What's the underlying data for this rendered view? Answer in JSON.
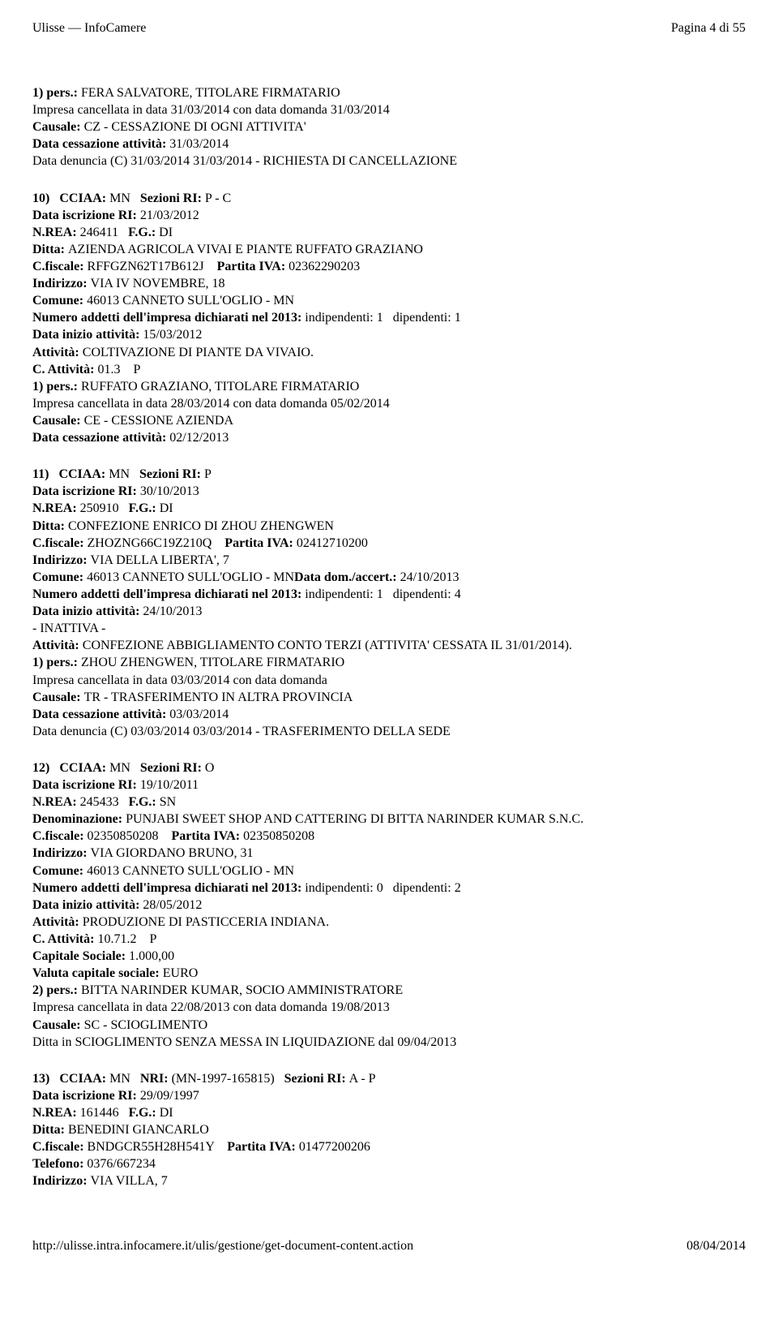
{
  "header": {
    "left": "Ulisse — InfoCamere",
    "right": "Pagina 4 di 55"
  },
  "entry9_tail": {
    "l1_a": "1) pers.: ",
    "l1_b": "FERA SALVATORE, TITOLARE FIRMATARIO",
    "l2": "Impresa cancellata in data 31/03/2014 con data domanda 31/03/2014",
    "l3_a": "Causale: ",
    "l3_b": "CZ - CESSAZIONE DI OGNI ATTIVITA'",
    "l4_a": "Data cessazione attività: ",
    "l4_b": "31/03/2014",
    "l5": "Data denuncia (C) 31/03/2014 31/03/2014 - RICHIESTA DI CANCELLAZIONE"
  },
  "entry10": {
    "h1_a": "10)   CCIAA: ",
    "h1_b": "MN   ",
    "h1_c": "Sezioni RI: ",
    "h1_d": "P - C",
    "h2_a": "Data iscrizione RI: ",
    "h2_b": "21/03/2012",
    "h3_a": "N.REA: ",
    "h3_b": "246411   ",
    "h3_c": "F.G.: ",
    "h3_d": "DI",
    "h4_a": "Ditta: ",
    "h4_b": "AZIENDA AGRICOLA VIVAI E PIANTE RUFFATO GRAZIANO",
    "h5_a": "C.fiscale: ",
    "h5_b": "RFFGZN62T17B612J    ",
    "h5_c": "Partita IVA: ",
    "h5_d": "02362290203",
    "h6_a": "Indirizzo: ",
    "h6_b": "VIA IV NOVEMBRE, 18",
    "h7_a": "Comune: ",
    "h7_b": "46013 CANNETO SULL'OGLIO - MN",
    "h8_a": "Numero addetti dell'impresa dichiarati nel 2013: ",
    "h8_b": "indipendenti: 1   dipendenti: 1",
    "h9_a": "Data inizio attività: ",
    "h9_b": "15/03/2012",
    "h10_a": "Attività: ",
    "h10_b": "COLTIVAZIONE DI PIANTE DA VIVAIO.",
    "h11_a": "C. Attività: ",
    "h11_b": "01.3    P",
    "h12_a": "1) pers.: ",
    "h12_b": "RUFFATO GRAZIANO, TITOLARE FIRMATARIO",
    "h13": "Impresa cancellata in data 28/03/2014 con data domanda 05/02/2014",
    "h14_a": "Causale: ",
    "h14_b": "CE - CESSIONE AZIENDA",
    "h15_a": "Data cessazione attività: ",
    "h15_b": "02/12/2013"
  },
  "entry11": {
    "h1_a": "11)   CCIAA: ",
    "h1_b": "MN   ",
    "h1_c": "Sezioni RI: ",
    "h1_d": "P",
    "h2_a": "Data iscrizione RI: ",
    "h2_b": "30/10/2013",
    "h3_a": "N.REA: ",
    "h3_b": "250910   ",
    "h3_c": "F.G.: ",
    "h3_d": "DI",
    "h4_a": "Ditta: ",
    "h4_b": "CONFEZIONE ENRICO DI ZHOU ZHENGWEN",
    "h5_a": "C.fiscale: ",
    "h5_b": "ZHOZNG66C19Z210Q    ",
    "h5_c": "Partita IVA: ",
    "h5_d": "02412710200",
    "h6_a": "Indirizzo: ",
    "h6_b": "VIA DELLA LIBERTA', 7",
    "h7_a": "Comune: ",
    "h7_b": "46013 CANNETO SULL'OGLIO - MN",
    "h7_c": "Data dom./accert.: ",
    "h7_d": "24/10/2013",
    "h8_a": "Numero addetti dell'impresa dichiarati nel 2013: ",
    "h8_b": "indipendenti: 1   dipendenti: 4",
    "h9_a": "Data inizio attività: ",
    "h9_b": "24/10/2013",
    "h10": "- INATTIVA -",
    "h11_a": "Attività: ",
    "h11_b": "CONFEZIONE ABBIGLIAMENTO CONTO TERZI (ATTIVITA' CESSATA IL 31/01/2014).",
    "h12_a": "1) pers.: ",
    "h12_b": "ZHOU ZHENGWEN, TITOLARE FIRMATARIO",
    "h13": "Impresa cancellata in data 03/03/2014 con data domanda",
    "h14_a": "Causale: ",
    "h14_b": "TR - TRASFERIMENTO IN ALTRA PROVINCIA",
    "h15_a": "Data cessazione attività: ",
    "h15_b": "03/03/2014",
    "h16": "Data denuncia (C) 03/03/2014 03/03/2014 - TRASFERIMENTO DELLA SEDE"
  },
  "entry12": {
    "h1_a": "12)   CCIAA: ",
    "h1_b": "MN   ",
    "h1_c": "Sezioni RI: ",
    "h1_d": "O",
    "h2_a": "Data iscrizione RI: ",
    "h2_b": "19/10/2011",
    "h3_a": "N.REA: ",
    "h3_b": "245433   ",
    "h3_c": "F.G.: ",
    "h3_d": "SN",
    "h4_a": "Denominazione: ",
    "h4_b": "PUNJABI SWEET SHOP AND CATTERING DI BITTA NARINDER KUMAR S.N.C.",
    "h5_a": "C.fiscale: ",
    "h5_b": "02350850208    ",
    "h5_c": "Partita IVA: ",
    "h5_d": "02350850208",
    "h6_a": "Indirizzo: ",
    "h6_b": "VIA GIORDANO BRUNO, 31",
    "h7_a": "Comune: ",
    "h7_b": "46013 CANNETO SULL'OGLIO - MN",
    "h8_a": "Numero addetti dell'impresa dichiarati nel 2013: ",
    "h8_b": "indipendenti: 0   dipendenti: 2",
    "h9_a": "Data inizio attività: ",
    "h9_b": "28/05/2012",
    "h10_a": "Attività: ",
    "h10_b": "PRODUZIONE DI PASTICCERIA INDIANA.",
    "h11_a": "C. Attività: ",
    "h11_b": "10.71.2    P",
    "h12_a": "Capitale Sociale: ",
    "h12_b": "1.000,00",
    "h13_a": "Valuta capitale sociale: ",
    "h13_b": "EURO",
    "h14_a": "2) pers.: ",
    "h14_b": "BITTA NARINDER KUMAR, SOCIO AMMINISTRATORE",
    "h15": "Impresa cancellata in data 22/08/2013 con data domanda 19/08/2013",
    "h16_a": "Causale: ",
    "h16_b": "SC - SCIOGLIMENTO",
    "h17": "Ditta in SCIOGLIMENTO SENZA MESSA IN LIQUIDAZIONE dal 09/04/2013"
  },
  "entry13": {
    "h1_a": "13)   CCIAA: ",
    "h1_b": "MN   ",
    "h1_c": "NRI: ",
    "h1_d": "(MN-1997-165815)   ",
    "h1_e": "Sezioni RI: ",
    "h1_f": "A - P",
    "h2_a": "Data iscrizione RI: ",
    "h2_b": "29/09/1997",
    "h3_a": "N.REA: ",
    "h3_b": "161446   ",
    "h3_c": "F.G.: ",
    "h3_d": "DI",
    "h4_a": "Ditta: ",
    "h4_b": "BENEDINI GIANCARLO",
    "h5_a": "C.fiscale: ",
    "h5_b": "BNDGCR55H28H541Y    ",
    "h5_c": "Partita IVA: ",
    "h5_d": "01477200206",
    "h6_a": "Telefono: ",
    "h6_b": "0376/667234",
    "h7_a": "Indirizzo: ",
    "h7_b": "VIA VILLA, 7"
  },
  "footer": {
    "left": "http://ulisse.intra.infocamere.it/ulis/gestione/get-document-content.action",
    "right": "08/04/2014"
  }
}
